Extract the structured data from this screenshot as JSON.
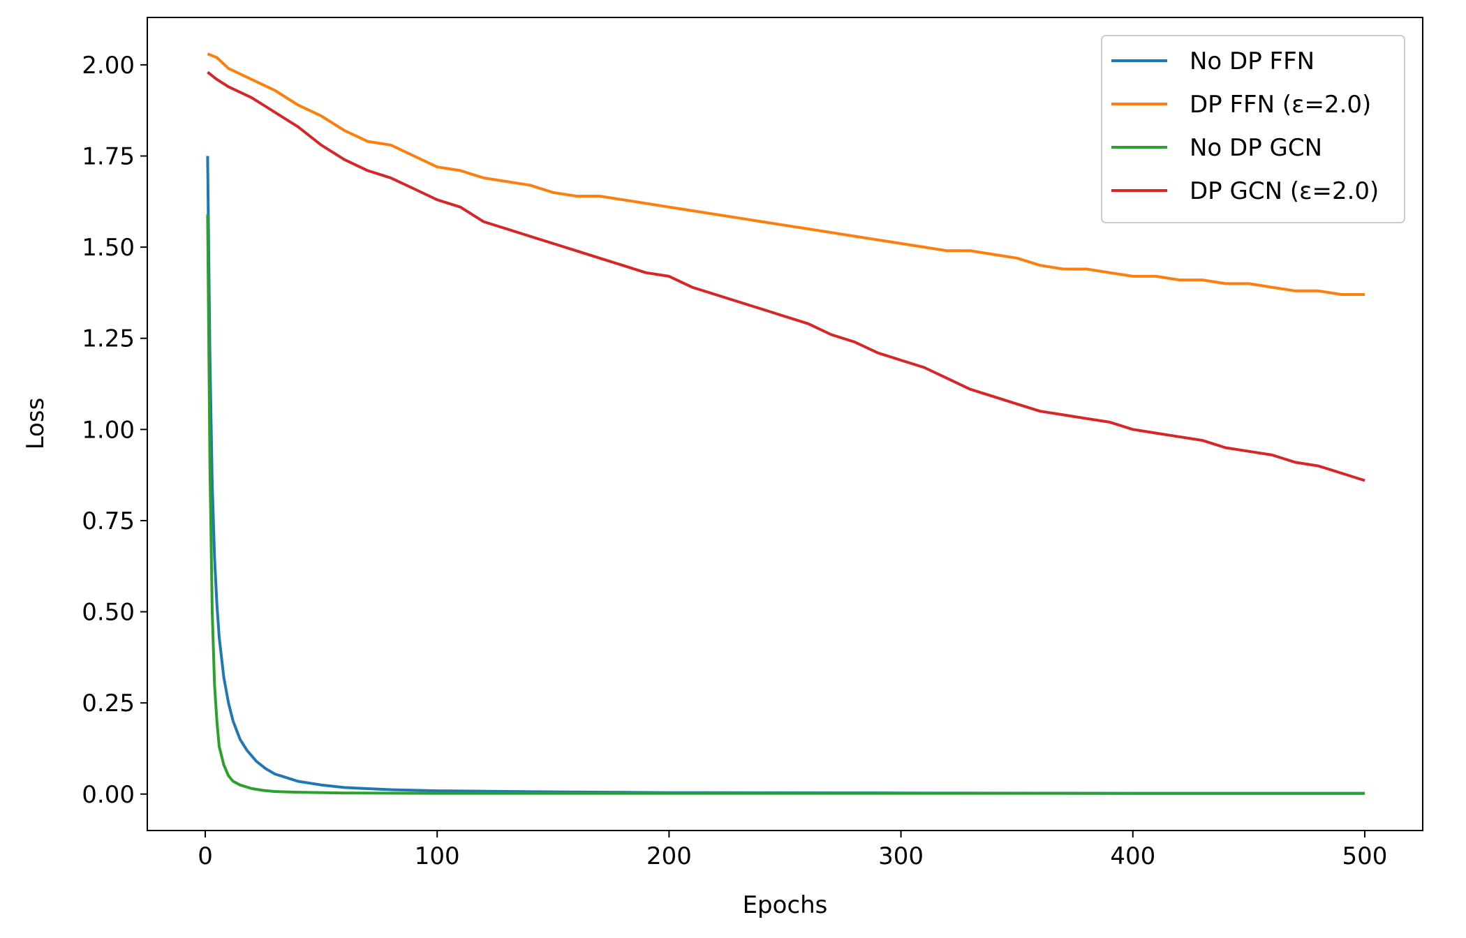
{
  "chart_data": {
    "type": "line",
    "title": "",
    "xlabel": "Epochs",
    "ylabel": "Loss",
    "xlim": [
      -25,
      525
    ],
    "ylim": [
      -0.1,
      2.13
    ],
    "xticks": [
      0,
      100,
      200,
      300,
      400,
      500
    ],
    "xtick_labels": [
      "0",
      "100",
      "200",
      "300",
      "400",
      "500"
    ],
    "yticks": [
      0,
      0.25,
      0.5,
      0.75,
      1.0,
      1.25,
      1.5,
      1.75,
      2.0
    ],
    "ytick_labels": [
      "0.00",
      "0.25",
      "0.50",
      "0.75",
      "1.00",
      "1.25",
      "1.50",
      "1.75",
      "2.00"
    ],
    "grid": false,
    "legend_position": "top-right",
    "series": [
      {
        "name": "No DP FFN",
        "color": "#1f77b4",
        "points": [
          [
            1,
            1.75
          ],
          [
            2,
            1.2
          ],
          [
            3,
            0.85
          ],
          [
            4,
            0.65
          ],
          [
            5,
            0.52
          ],
          [
            6,
            0.43
          ],
          [
            8,
            0.32
          ],
          [
            10,
            0.25
          ],
          [
            12,
            0.2
          ],
          [
            15,
            0.15
          ],
          [
            18,
            0.12
          ],
          [
            22,
            0.09
          ],
          [
            26,
            0.07
          ],
          [
            30,
            0.055
          ],
          [
            35,
            0.045
          ],
          [
            40,
            0.035
          ],
          [
            50,
            0.025
          ],
          [
            60,
            0.018
          ],
          [
            80,
            0.012
          ],
          [
            100,
            0.009
          ],
          [
            150,
            0.006
          ],
          [
            200,
            0.004
          ],
          [
            300,
            0.003
          ],
          [
            400,
            0.002
          ],
          [
            500,
            0.002
          ]
        ]
      },
      {
        "name": "DP FFN (ε=2.0)",
        "color": "#ff7f0e",
        "points": [
          [
            1,
            2.03
          ],
          [
            5,
            2.02
          ],
          [
            10,
            1.99
          ],
          [
            20,
            1.96
          ],
          [
            30,
            1.93
          ],
          [
            40,
            1.89
          ],
          [
            50,
            1.86
          ],
          [
            60,
            1.82
          ],
          [
            70,
            1.79
          ],
          [
            80,
            1.78
          ],
          [
            90,
            1.75
          ],
          [
            100,
            1.72
          ],
          [
            110,
            1.71
          ],
          [
            120,
            1.69
          ],
          [
            130,
            1.68
          ],
          [
            140,
            1.67
          ],
          [
            150,
            1.65
          ],
          [
            160,
            1.64
          ],
          [
            170,
            1.64
          ],
          [
            180,
            1.63
          ],
          [
            190,
            1.62
          ],
          [
            200,
            1.61
          ],
          [
            210,
            1.6
          ],
          [
            220,
            1.59
          ],
          [
            230,
            1.58
          ],
          [
            240,
            1.57
          ],
          [
            250,
            1.56
          ],
          [
            260,
            1.55
          ],
          [
            270,
            1.54
          ],
          [
            280,
            1.53
          ],
          [
            290,
            1.52
          ],
          [
            300,
            1.51
          ],
          [
            310,
            1.5
          ],
          [
            320,
            1.49
          ],
          [
            330,
            1.49
          ],
          [
            340,
            1.48
          ],
          [
            350,
            1.47
          ],
          [
            360,
            1.45
          ],
          [
            370,
            1.44
          ],
          [
            380,
            1.44
          ],
          [
            390,
            1.43
          ],
          [
            400,
            1.42
          ],
          [
            410,
            1.42
          ],
          [
            420,
            1.41
          ],
          [
            430,
            1.41
          ],
          [
            440,
            1.4
          ],
          [
            450,
            1.4
          ],
          [
            460,
            1.39
          ],
          [
            470,
            1.38
          ],
          [
            480,
            1.38
          ],
          [
            490,
            1.37
          ],
          [
            500,
            1.37
          ]
        ]
      },
      {
        "name": "No DP GCN",
        "color": "#2ca02c",
        "points": [
          [
            1,
            1.59
          ],
          [
            2,
            0.9
          ],
          [
            3,
            0.5
          ],
          [
            4,
            0.3
          ],
          [
            5,
            0.2
          ],
          [
            6,
            0.13
          ],
          [
            8,
            0.08
          ],
          [
            10,
            0.05
          ],
          [
            12,
            0.035
          ],
          [
            15,
            0.025
          ],
          [
            20,
            0.015
          ],
          [
            25,
            0.01
          ],
          [
            30,
            0.007
          ],
          [
            40,
            0.005
          ],
          [
            60,
            0.003
          ],
          [
            100,
            0.002
          ],
          [
            200,
            0.002
          ],
          [
            300,
            0.002
          ],
          [
            400,
            0.002
          ],
          [
            500,
            0.002
          ]
        ]
      },
      {
        "name": "DP GCN (ε=2.0)",
        "color": "#d62728",
        "points": [
          [
            1,
            1.98
          ],
          [
            5,
            1.96
          ],
          [
            10,
            1.94
          ],
          [
            20,
            1.91
          ],
          [
            30,
            1.87
          ],
          [
            40,
            1.83
          ],
          [
            50,
            1.78
          ],
          [
            60,
            1.74
          ],
          [
            70,
            1.71
          ],
          [
            80,
            1.69
          ],
          [
            90,
            1.66
          ],
          [
            100,
            1.63
          ],
          [
            110,
            1.61
          ],
          [
            120,
            1.57
          ],
          [
            130,
            1.55
          ],
          [
            140,
            1.53
          ],
          [
            150,
            1.51
          ],
          [
            160,
            1.49
          ],
          [
            170,
            1.47
          ],
          [
            180,
            1.45
          ],
          [
            190,
            1.43
          ],
          [
            200,
            1.42
          ],
          [
            210,
            1.39
          ],
          [
            220,
            1.37
          ],
          [
            230,
            1.35
          ],
          [
            240,
            1.33
          ],
          [
            250,
            1.31
          ],
          [
            260,
            1.29
          ],
          [
            270,
            1.26
          ],
          [
            280,
            1.24
          ],
          [
            290,
            1.21
          ],
          [
            300,
            1.19
          ],
          [
            310,
            1.17
          ],
          [
            320,
            1.14
          ],
          [
            330,
            1.11
          ],
          [
            340,
            1.09
          ],
          [
            350,
            1.07
          ],
          [
            360,
            1.05
          ],
          [
            370,
            1.04
          ],
          [
            380,
            1.03
          ],
          [
            390,
            1.02
          ],
          [
            400,
            1.0
          ],
          [
            410,
            0.99
          ],
          [
            420,
            0.98
          ],
          [
            430,
            0.97
          ],
          [
            440,
            0.95
          ],
          [
            450,
            0.94
          ],
          [
            460,
            0.93
          ],
          [
            470,
            0.91
          ],
          [
            480,
            0.9
          ],
          [
            490,
            0.88
          ],
          [
            500,
            0.86
          ]
        ]
      }
    ]
  }
}
